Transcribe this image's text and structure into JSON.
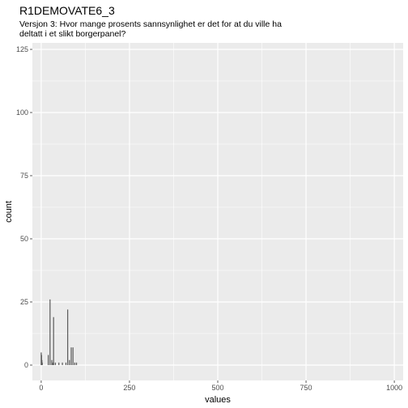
{
  "header": {
    "title": "R1DEMOVATE6_3",
    "subtitle_line1": "Versjon 3: Hvor mange prosents sannsynlighet er det for at du ville ha",
    "subtitle_line2": "deltatt i et slikt borgerpanel?"
  },
  "colors": {
    "panel": "#ebebeb",
    "grid_major": "#ffffff",
    "bar": "#595959",
    "tick_text": "#4d4d4d"
  },
  "chart_data": {
    "type": "bar",
    "title": "R1DEMOVATE6_3",
    "subtitle": "Versjon 3: Hvor mange prosents sannsynlighet er det for at du ville ha deltatt i et slikt borgerpanel?",
    "xlabel": "values",
    "ylabel": "count",
    "xlim": [
      -25,
      1025
    ],
    "ylim": [
      0,
      125
    ],
    "x_ticks": [
      0,
      250,
      500,
      750,
      1000
    ],
    "y_ticks": [
      0,
      25,
      50,
      75,
      100,
      125
    ],
    "grid": true,
    "bin_width": 1,
    "bars": [
      {
        "x": 0,
        "count": 5
      },
      {
        "x": 1,
        "count": 4
      },
      {
        "x": 2,
        "count": 2
      },
      {
        "x": 3,
        "count": 1
      },
      {
        "x": 20,
        "count": 4
      },
      {
        "x": 25,
        "count": 26
      },
      {
        "x": 30,
        "count": 2
      },
      {
        "x": 33,
        "count": 1
      },
      {
        "x": 35,
        "count": 19
      },
      {
        "x": 40,
        "count": 1
      },
      {
        "x": 50,
        "count": 1
      },
      {
        "x": 60,
        "count": 1
      },
      {
        "x": 70,
        "count": 1
      },
      {
        "x": 75,
        "count": 22
      },
      {
        "x": 80,
        "count": 2
      },
      {
        "x": 85,
        "count": 7
      },
      {
        "x": 90,
        "count": 7
      },
      {
        "x": 95,
        "count": 1
      },
      {
        "x": 100,
        "count": 1
      }
    ]
  }
}
